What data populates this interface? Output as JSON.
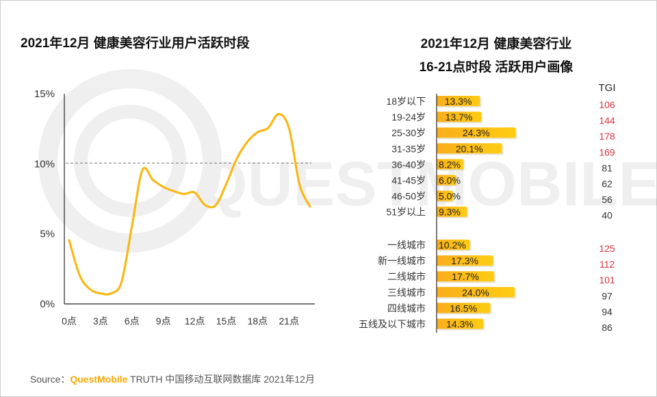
{
  "watermark": "QUESTMOBILE",
  "chart_data": [
    {
      "type": "line",
      "title": "2021年12月 健康美容行业用户活跃时段",
      "x": [
        0,
        1,
        2,
        3,
        4,
        5,
        6,
        7,
        8,
        9,
        10,
        11,
        12,
        13,
        14,
        15,
        16,
        17,
        18,
        19,
        20,
        21,
        22,
        23
      ],
      "xtick_labels": [
        "0点",
        "3点",
        "6点",
        "9点",
        "12点",
        "15点",
        "18点",
        "21点"
      ],
      "xticks": [
        0,
        3,
        6,
        9,
        12,
        15,
        18,
        21
      ],
      "ytick_labels": [
        "0%",
        "5%",
        "10%",
        "15%"
      ],
      "yticks": [
        0,
        5,
        10,
        15
      ],
      "ylim": [
        0,
        15
      ],
      "reference_line": 10,
      "series": [
        {
          "values": [
            4.5,
            2.0,
            1.0,
            0.7,
            0.7,
            1.5,
            5.5,
            9.5,
            8.8,
            8.3,
            8.0,
            7.8,
            7.9,
            7.0,
            7.0,
            8.5,
            10.3,
            11.5,
            12.2,
            12.5,
            13.5,
            12.5,
            8.5,
            6.9
          ],
          "color": "#f9b816"
        }
      ]
    },
    {
      "type": "bar",
      "orientation": "horizontal",
      "title_lines": [
        "2021年12月 健康美容行业",
        "16-21点时段 活跃用户画像"
      ],
      "tgi_header": "TGI",
      "bar_color": "#fcc21b",
      "tgi_high_color": "#d9333f",
      "groups": [
        {
          "categories": [
            "18岁以下",
            "19-24岁",
            "25-30岁",
            "31-35岁",
            "36-40岁",
            "41-45岁",
            "46-50岁",
            "51岁以上"
          ],
          "values": [
            13.3,
            13.7,
            24.3,
            20.1,
            8.2,
            6.0,
            5.0,
            9.3
          ],
          "labels": [
            "13.3%",
            "13.7%",
            "24.3%",
            "20.1%",
            "8.2%",
            "6.0%",
            "5.0%",
            "9.3%"
          ],
          "tgi": [
            106,
            144,
            178,
            169,
            81,
            62,
            56,
            40
          ]
        },
        {
          "categories": [
            "一线城市",
            "新一线城市",
            "二线城市",
            "三线城市",
            "四线城市",
            "五线及以下城市"
          ],
          "values": [
            10.2,
            17.3,
            17.7,
            24.0,
            16.5,
            14.3
          ],
          "labels": [
            "10.2%",
            "17.3%",
            "17.7%",
            "24.0%",
            "16.5%",
            "14.3%"
          ],
          "tgi": [
            125,
            112,
            101,
            97,
            94,
            86
          ]
        }
      ]
    }
  ],
  "source": {
    "label": "Source：",
    "brand": "QuestMobile",
    "text": " TRUTH 中国移动互联网数据库 2021年12月"
  }
}
